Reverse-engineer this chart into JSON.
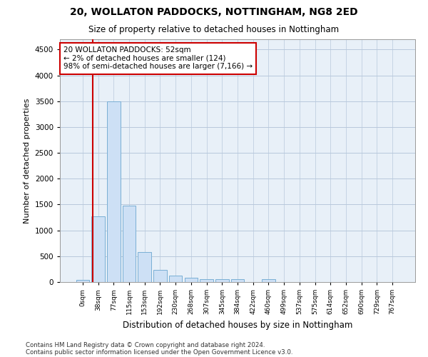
{
  "title": "20, WOLLATON PADDOCKS, NOTTINGHAM, NG8 2ED",
  "subtitle": "Size of property relative to detached houses in Nottingham",
  "xlabel": "Distribution of detached houses by size in Nottingham",
  "ylabel": "Number of detached properties",
  "bar_color": "#cde0f5",
  "bar_edge_color": "#7aafd4",
  "grid_color": "#b8c8dc",
  "background_color": "#e8f0f8",
  "property_line_color": "#cc0000",
  "annotation_box_color": "#cc0000",
  "bin_labels": [
    "0sqm",
    "38sqm",
    "77sqm",
    "115sqm",
    "153sqm",
    "192sqm",
    "230sqm",
    "268sqm",
    "307sqm",
    "345sqm",
    "384sqm",
    "422sqm",
    "460sqm",
    "499sqm",
    "537sqm",
    "575sqm",
    "614sqm",
    "652sqm",
    "690sqm",
    "729sqm",
    "767sqm"
  ],
  "bar_values": [
    40,
    1270,
    3500,
    1480,
    580,
    240,
    120,
    85,
    55,
    50,
    55,
    0,
    55,
    0,
    0,
    0,
    0,
    0,
    0,
    0,
    0
  ],
  "ylim": [
    0,
    4700
  ],
  "yticks": [
    0,
    500,
    1000,
    1500,
    2000,
    2500,
    3000,
    3500,
    4000,
    4500
  ],
  "property_bin_index": 1,
  "annotation_line1": "20 WOLLATON PADDOCKS: 52sqm",
  "annotation_line2": "← 2% of detached houses are smaller (124)",
  "annotation_line3": "98% of semi-detached houses are larger (7,166) →",
  "footnote1": "Contains HM Land Registry data © Crown copyright and database right 2024.",
  "footnote2": "Contains public sector information licensed under the Open Government Licence v3.0."
}
